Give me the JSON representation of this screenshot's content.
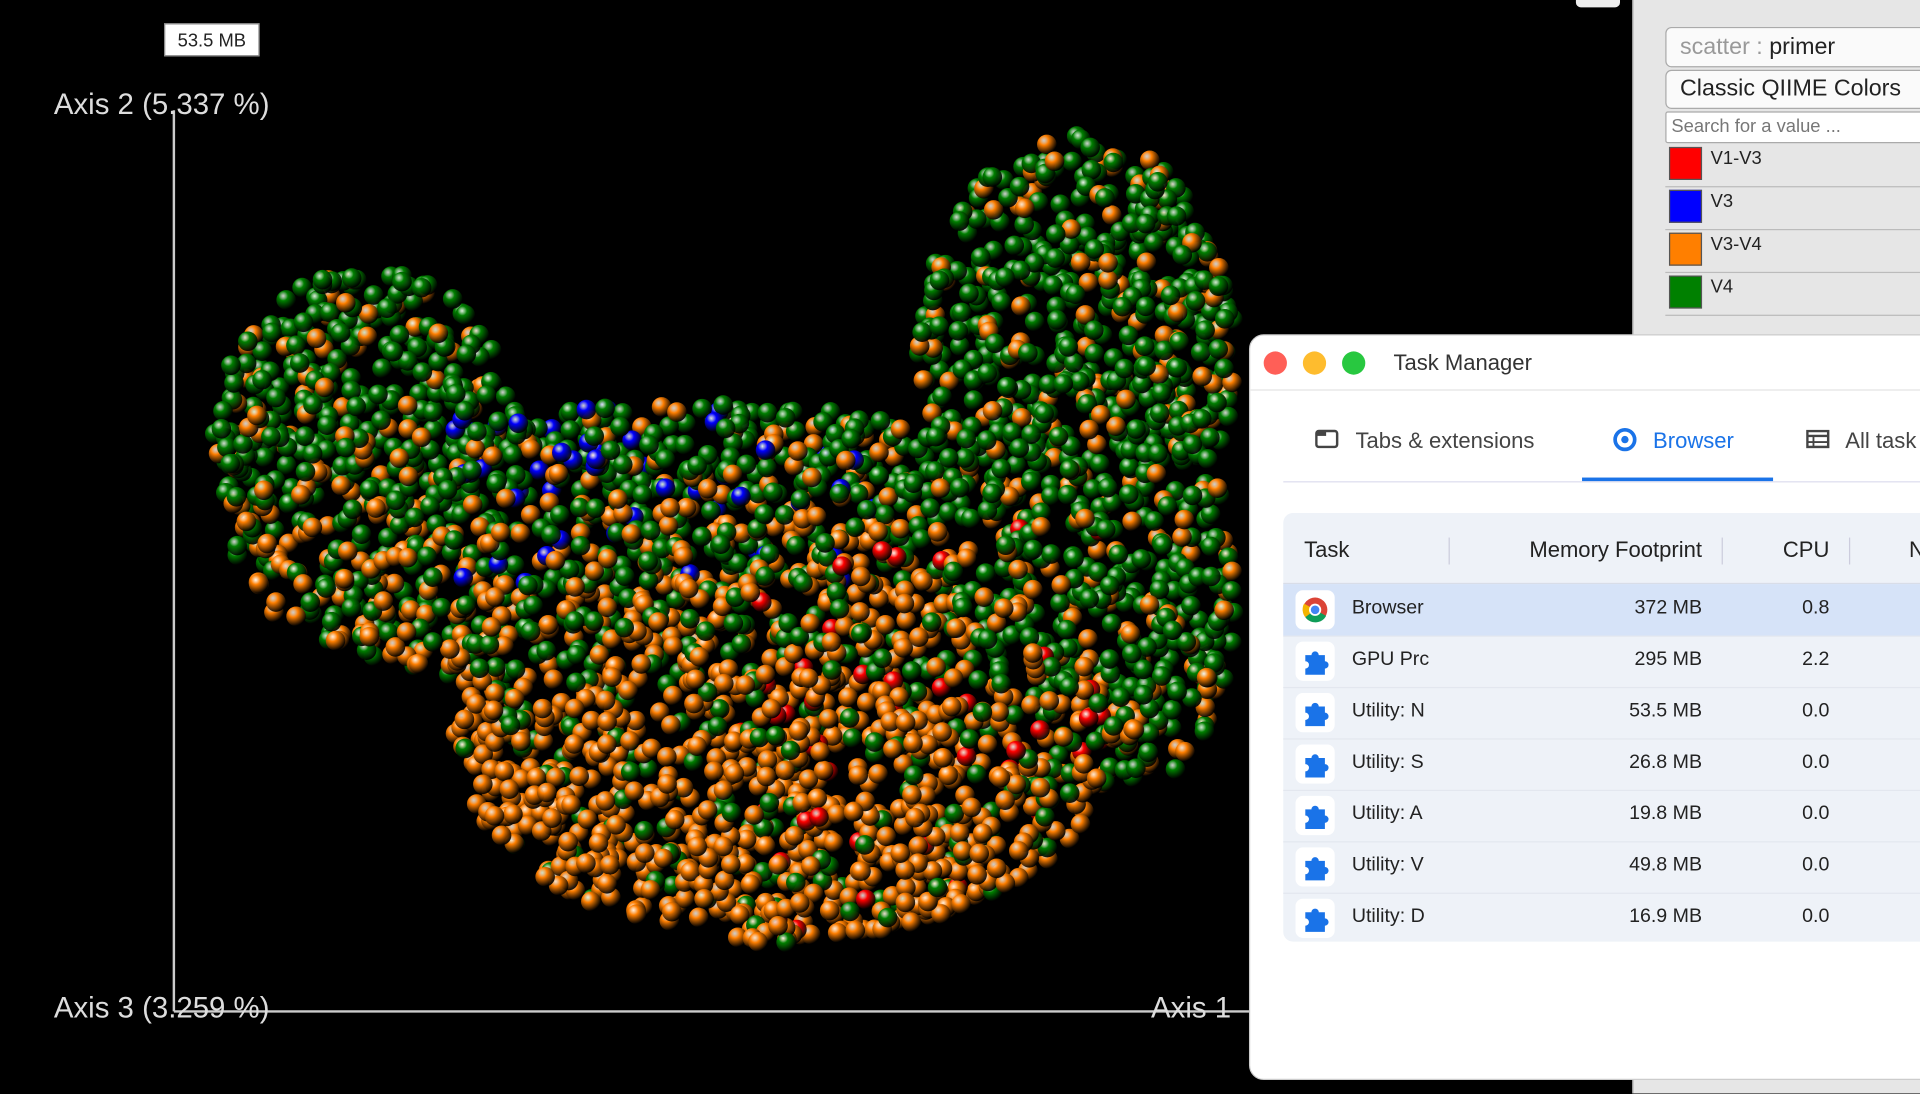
{
  "plot": {
    "tooltip": "53.5 MB",
    "axis_y": "Axis 2 (5.337 %)",
    "axis_z": "Axis 3 (3.259 %)",
    "axis_x": "Axis 1"
  },
  "sidebar": {
    "scatter_label": "scatter :",
    "scatter_value": "primer",
    "color_scheme": "Classic QIIME Colors",
    "search_placeholder": "Search for a value ...",
    "legend": [
      {
        "name": "V1-V3",
        "color": "#ff0000"
      },
      {
        "name": "V3",
        "color": "#0000ff"
      },
      {
        "name": "V3-V4",
        "color": "#ff7f00"
      },
      {
        "name": "V4",
        "color": "#008000"
      }
    ]
  },
  "task_manager": {
    "title": "Task Manager",
    "tabs": [
      "Tabs & extensions",
      "Browser",
      "All task"
    ],
    "active_tab": 1,
    "columns": [
      "Task",
      "Memory Footprint",
      "CPU",
      "N"
    ],
    "rows": [
      [
        "Browser",
        "372 MB",
        "0.8"
      ],
      [
        "GPU Prc",
        "295 MB",
        "2.2"
      ],
      [
        "Utility: N",
        "53.5 MB",
        "0.0"
      ],
      [
        "Utility: S",
        "26.8 MB",
        "0.0"
      ],
      [
        "Utility: A",
        "19.8 MB",
        "0.0"
      ],
      [
        "Utility: V",
        "49.8 MB",
        "0.0"
      ],
      [
        "Utility: D",
        "16.9 MB",
        "0.0"
      ]
    ]
  }
}
